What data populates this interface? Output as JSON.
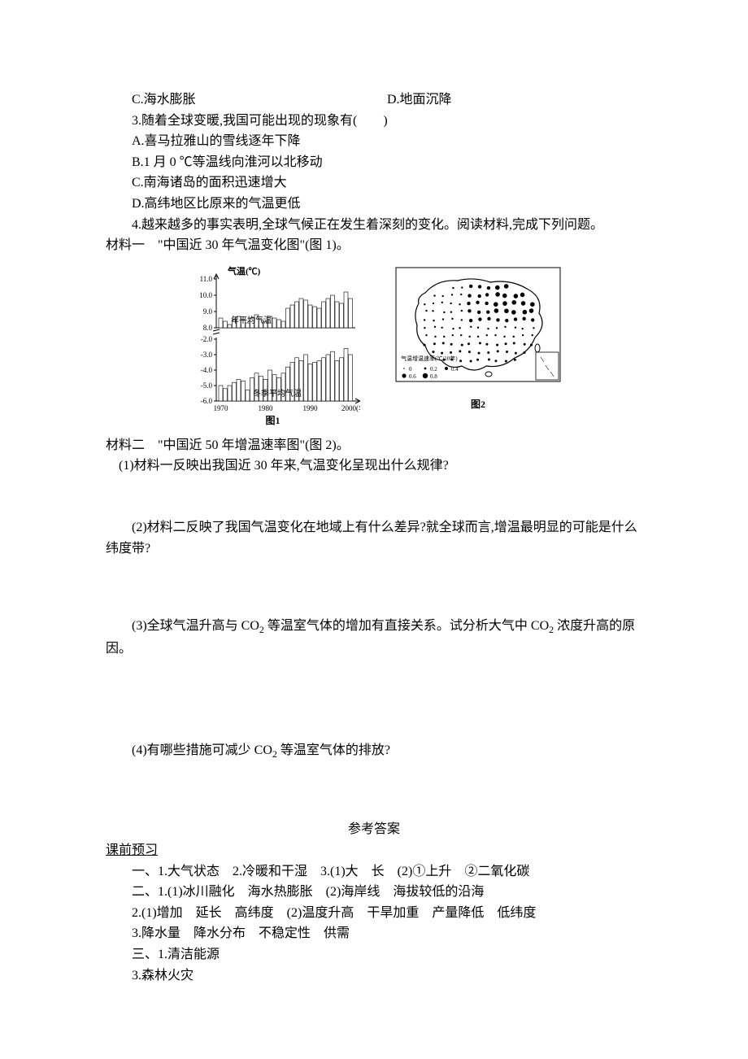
{
  "options_c_d": {
    "c": "C.海水膨胀",
    "d": "D.地面沉降"
  },
  "q3": {
    "stem": "3.随着全球变暖,我国可能出现的现象有(　　)",
    "a": "A.喜马拉雅山的雪线逐年下降",
    "b": "B.1 月 0 ℃等温线向淮河以北移动",
    "c": "C.南海诸岛的面积迅速增大",
    "d": "D.高纬地区比原来的气温更低"
  },
  "q4": {
    "stem": "4.越来越多的事实表明,全球气候正在发生着深刻的变化。阅读材料,完成下列问题。",
    "material1_prefix": "材料一　",
    "material1_text": "\"中国近 30 年气温变化图\"(图 1)。",
    "material2_prefix": "材料二　",
    "material2_text": "\"中国近 50 年增温速率图\"(图 2)。",
    "sub1": "(1)材料一反映出我国近 30 年来,气温变化呈现出什么规律?",
    "sub2": "(2)材料二反映了我国气温变化在地域上有什么差异?就全球而言,增温最明显的可能是什么纬度带?",
    "sub3_prefix": "(3)全球气温升高与 CO",
    "sub3_mid": " 等温室气体的增加有直接关系。试分析大气中 CO",
    "sub3_suffix": " 浓度升高的原因。",
    "sub4_prefix": "(4)有哪些措施可减少 CO",
    "sub4_suffix": " 等温室气体的排放?"
  },
  "chart1": {
    "title": "气温(℃)",
    "y_axis_upper": [
      "11.0",
      "10.0",
      "9.0",
      "8.0"
    ],
    "y_axis_lower": [
      "-2.0",
      "-3.0",
      "-4.0",
      "-5.0",
      "-6.0"
    ],
    "x_axis": [
      "1970",
      "1980",
      "1990",
      "2000(年)"
    ],
    "label_upper": "年平均气温",
    "label_lower": "冬季平均气温",
    "caption": "图1",
    "upper_values": [
      8.6,
      8.4,
      8.2,
      8.5,
      8.7,
      8.5,
      8.3,
      8.6,
      8.8,
      8.5,
      8.4,
      8.7,
      8.6,
      8.5,
      8.4,
      9.2,
      9.4,
      9.6,
      9.8,
      9.7,
      9.4,
      9.3,
      9.2,
      9.6,
      9.8,
      10.0,
      9.6,
      9.5,
      10.2,
      9.8
    ],
    "lower_values": [
      -5.0,
      -5.2,
      -5.0,
      -4.8,
      -4.6,
      -4.7,
      -5.3,
      -4.5,
      -4.2,
      -4.4,
      -4.6,
      -4.0,
      -4.3,
      -4.5,
      -4.2,
      -3.8,
      -3.5,
      -3.2,
      -3.4,
      -3.0,
      -3.6,
      -3.5,
      -3.4,
      -3.2,
      -3.0,
      -2.8,
      -3.4,
      -3.2,
      -2.6,
      -3.0
    ],
    "bar_color": "#ffffff",
    "bar_stroke": "#000000",
    "axis_color": "#000000",
    "font_size_axis": 9,
    "font_size_title": 11,
    "font_size_label": 10
  },
  "map2": {
    "caption": "图2",
    "legend_title": "气温增温速率(℃/10年)",
    "legend_items": [
      "0",
      "0.2",
      "0.4",
      "0.6",
      "0.8"
    ],
    "dot_colors": [
      "#000000"
    ],
    "border_color": "#000000",
    "background": "#ffffff"
  },
  "answers": {
    "title": "参考答案",
    "section_heading": "课前预习",
    "line1": "一、1.大气状态　2.冷暖和干湿　3.(1)大　长　(2)①上升　②二氧化碳",
    "line2": "二、1.(1)冰川融化　海水热膨胀　(2)海岸线　海拔较低的沿海",
    "line3": "2.(1)增加　延长　高纬度　(2)温度升高　干旱加重　产量降低　低纬度",
    "line4": "3.降水量　降水分布　不稳定性　供需",
    "line5": "三、1.清洁能源",
    "line6": "3.森林火灾"
  }
}
